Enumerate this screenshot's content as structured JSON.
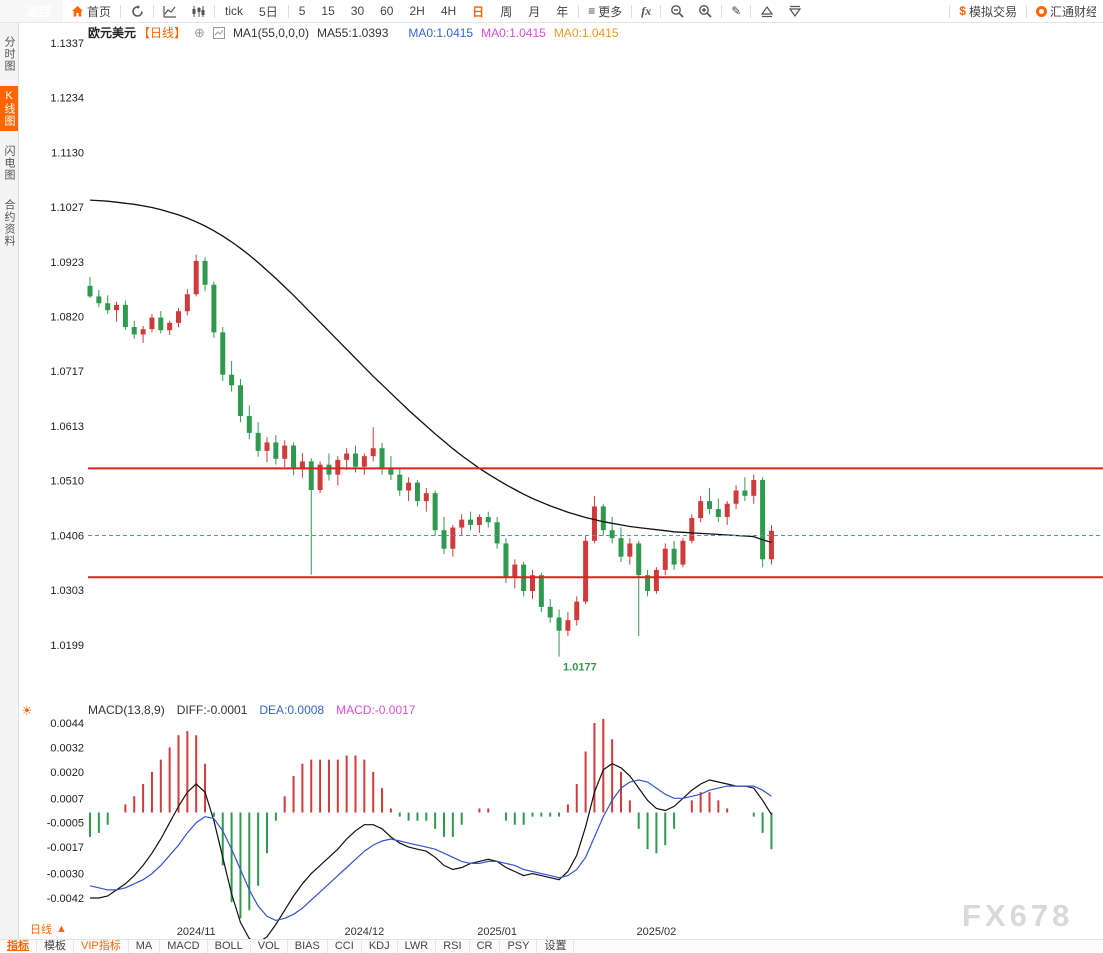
{
  "toolbar": {
    "back": "返回",
    "home": "首页",
    "tick": "tick",
    "five_day": "5日",
    "timeframes": [
      "5",
      "15",
      "30",
      "60",
      "2H",
      "4H",
      "日",
      "周",
      "月",
      "年"
    ],
    "more": "更多",
    "fx": "fx",
    "sim_trading": "模拟交易",
    "brand": "汇通财经"
  },
  "sidebar": {
    "tabs": [
      {
        "label": "分时图"
      },
      {
        "label": "K线图"
      },
      {
        "label": "闪电图"
      },
      {
        "label": "合约资料"
      }
    ]
  },
  "price_header": {
    "symbol": "欧元美元",
    "period": "【日线】",
    "ma_def": "MA1(55,0,0,0)",
    "ma55": "MA55:1.0393",
    "ma0_a": "MA0:1.0415",
    "ma0_b": "MA0:1.0415",
    "ma0_c": "MA0:1.0415"
  },
  "macd_header": {
    "title": "MACD(13,8,9)",
    "diff": "DIFF:-0.0001",
    "dea": "DEA:0.0008",
    "macd": "MACD:-0.0017"
  },
  "bottom": {
    "period": "日线",
    "tabs": [
      "指标",
      "模板",
      "VIP指标",
      "MA",
      "MACD",
      "BOLL",
      "VOL",
      "BIAS",
      "CCI",
      "KDJ",
      "LWR",
      "RSI",
      "CR",
      "PSY",
      "设置"
    ]
  },
  "watermark": "FX678",
  "chart_data": [
    {
      "type": "candlestick",
      "title": "欧元美元 日线 (EUR/USD Daily)",
      "y_ticks": [
        1.1337,
        1.1234,
        1.113,
        1.1027,
        1.0923,
        1.082,
        1.0717,
        1.0613,
        1.051,
        1.0406,
        1.0303,
        1.0199
      ],
      "x_tick_labels": [
        "2024/11",
        "2024/12",
        "2025/01",
        "2025/02"
      ],
      "x_tick_indices": [
        12,
        31,
        46,
        64
      ],
      "levels": {
        "resistance": 1.0533,
        "support": 1.0327,
        "last_price": 1.0406
      },
      "low_label": "1.0177",
      "colors": {
        "up": "#cf3b3b",
        "down": "#2f9a4e",
        "ma": "#111111",
        "level": "#dd2020",
        "dash": "#3a9fc0"
      },
      "candles_ohlc": [
        [
          1.0878,
          1.0895,
          1.0855,
          1.0858
        ],
        [
          1.0858,
          1.087,
          1.0838,
          1.0845
        ],
        [
          1.0845,
          1.086,
          1.0825,
          1.0832
        ],
        [
          1.0832,
          1.0848,
          1.081,
          1.0842
        ],
        [
          1.0842,
          1.085,
          1.0795,
          1.08
        ],
        [
          1.08,
          1.0812,
          1.0778,
          1.0786
        ],
        [
          1.0786,
          1.0802,
          1.077,
          1.0796
        ],
        [
          1.0796,
          1.0825,
          1.079,
          1.0818
        ],
        [
          1.0818,
          1.083,
          1.0788,
          1.0794
        ],
        [
          1.0794,
          1.0812,
          1.0785,
          1.0808
        ],
        [
          1.0808,
          1.0836,
          1.08,
          1.083
        ],
        [
          1.083,
          1.0872,
          1.0822,
          1.0862
        ],
        [
          1.0862,
          1.0937,
          1.0858,
          1.0925
        ],
        [
          1.0925,
          1.0932,
          1.0868,
          1.088
        ],
        [
          1.088,
          1.0886,
          1.078,
          1.079
        ],
        [
          1.079,
          1.08,
          1.0698,
          1.071
        ],
        [
          1.071,
          1.0736,
          1.0678,
          1.069
        ],
        [
          1.069,
          1.0702,
          1.062,
          1.0632
        ],
        [
          1.0632,
          1.0652,
          1.0588,
          1.06
        ],
        [
          1.06,
          1.062,
          1.0555,
          1.0566
        ],
        [
          1.0566,
          1.0592,
          1.0545,
          1.0582
        ],
        [
          1.0582,
          1.0596,
          1.054,
          1.0551
        ],
        [
          1.0551,
          1.0586,
          1.0535,
          1.0576
        ],
        [
          1.0576,
          1.0582,
          1.052,
          1.0531
        ],
        [
          1.0531,
          1.0562,
          1.0515,
          1.0546
        ],
        [
          1.0546,
          1.0552,
          1.0332,
          1.0492
        ],
        [
          1.0492,
          1.0546,
          1.0486,
          1.054
        ],
        [
          1.054,
          1.0561,
          1.051,
          1.0521
        ],
        [
          1.0521,
          1.0556,
          1.0501,
          1.0549
        ],
        [
          1.0549,
          1.0571,
          1.053,
          1.0561
        ],
        [
          1.0561,
          1.0576,
          1.0525,
          1.0536
        ],
        [
          1.0536,
          1.0561,
          1.0521,
          1.0556
        ],
        [
          1.0556,
          1.0611,
          1.0546,
          1.0571
        ],
        [
          1.0571,
          1.0581,
          1.0521,
          1.0531
        ],
        [
          1.0531,
          1.0556,
          1.0511,
          1.0521
        ],
        [
          1.0521,
          1.0531,
          1.0481,
          1.0491
        ],
        [
          1.0491,
          1.0516,
          1.0471,
          1.0506
        ],
        [
          1.0506,
          1.0511,
          1.0461,
          1.0471
        ],
        [
          1.0471,
          1.0496,
          1.0451,
          1.0486
        ],
        [
          1.0486,
          1.0491,
          1.0406,
          1.0416
        ],
        [
          1.0416,
          1.0441,
          1.0371,
          1.0381
        ],
        [
          1.0381,
          1.0426,
          1.0366,
          1.0421
        ],
        [
          1.0421,
          1.0446,
          1.0406,
          1.0436
        ],
        [
          1.0436,
          1.0451,
          1.0416,
          1.0426
        ],
        [
          1.0426,
          1.0446,
          1.0411,
          1.0441
        ],
        [
          1.0441,
          1.0451,
          1.0421,
          1.0431
        ],
        [
          1.0431,
          1.0441,
          1.0381,
          1.0391
        ],
        [
          1.0391,
          1.0401,
          1.0316,
          1.0326
        ],
        [
          1.0326,
          1.0361,
          1.0306,
          1.0351
        ],
        [
          1.0351,
          1.0356,
          1.0291,
          1.0301
        ],
        [
          1.0301,
          1.0341,
          1.0286,
          1.0331
        ],
        [
          1.0331,
          1.0336,
          1.0261,
          1.0271
        ],
        [
          1.0271,
          1.0286,
          1.0241,
          1.0251
        ],
        [
          1.0251,
          1.0266,
          1.0177,
          1.0226
        ],
        [
          1.0226,
          1.0261,
          1.0216,
          1.0246
        ],
        [
          1.0246,
          1.0291,
          1.0236,
          1.0281
        ],
        [
          1.0281,
          1.0406,
          1.0276,
          1.0396
        ],
        [
          1.0396,
          1.0481,
          1.0391,
          1.0461
        ],
        [
          1.0461,
          1.0466,
          1.0406,
          1.0416
        ],
        [
          1.0416,
          1.0441,
          1.0391,
          1.0401
        ],
        [
          1.0401,
          1.0421,
          1.0356,
          1.0366
        ],
        [
          1.0366,
          1.0401,
          1.0351,
          1.0391
        ],
        [
          1.0391,
          1.0396,
          1.0216,
          1.0331
        ],
        [
          1.0331,
          1.0341,
          1.0291,
          1.0301
        ],
        [
          1.0301,
          1.0346,
          1.0296,
          1.0341
        ],
        [
          1.0341,
          1.0391,
          1.0331,
          1.0381
        ],
        [
          1.0381,
          1.0396,
          1.0341,
          1.0351
        ],
        [
          1.0351,
          1.0401,
          1.0346,
          1.0396
        ],
        [
          1.0396,
          1.0446,
          1.0391,
          1.0439
        ],
        [
          1.0439,
          1.0481,
          1.0431,
          1.0471
        ],
        [
          1.0471,
          1.0496,
          1.0446,
          1.0456
        ],
        [
          1.0456,
          1.0476,
          1.0431,
          1.0441
        ],
        [
          1.0441,
          1.0471,
          1.0426,
          1.0466
        ],
        [
          1.0466,
          1.0501,
          1.0456,
          1.0491
        ],
        [
          1.0491,
          1.0516,
          1.0471,
          1.0481
        ],
        [
          1.0481,
          1.0521,
          1.0466,
          1.0511
        ],
        [
          1.0511,
          1.0516,
          1.0346,
          1.0361
        ],
        [
          1.0361,
          1.0426,
          1.0351,
          1.0415
        ]
      ],
      "ma55": [
        1.104,
        1.1039,
        1.1038,
        1.1036,
        1.1034,
        1.1032,
        1.1029,
        1.1026,
        1.1022,
        1.1017,
        1.1012,
        1.1006,
        1.0999,
        1.0991,
        1.0982,
        1.0972,
        1.0961,
        1.0949,
        1.0936,
        1.0922,
        1.0907,
        1.0892,
        1.0876,
        1.086,
        1.0843,
        1.0826,
        1.0809,
        1.0792,
        1.0775,
        1.0758,
        1.0741,
        1.0724,
        1.0707,
        1.0691,
        1.0675,
        1.0659,
        1.0643,
        1.0628,
        1.0613,
        1.0598,
        1.0584,
        1.057,
        1.0557,
        1.0545,
        1.0533,
        1.0522,
        1.0512,
        1.0502,
        1.0493,
        1.0484,
        1.0476,
        1.0469,
        1.0462,
        1.0456,
        1.045,
        1.0445,
        1.044,
        1.0436,
        1.0432,
        1.0429,
        1.0426,
        1.0423,
        1.0421,
        1.0419,
        1.0417,
        1.0415,
        1.0413,
        1.0412,
        1.0411,
        1.041,
        1.0409,
        1.0408,
        1.0407,
        1.0406,
        1.0405,
        1.0404,
        1.0398,
        1.0393
      ]
    },
    {
      "type": "macd",
      "title": "MACD(13,8,9)",
      "y_ticks": [
        0.0044,
        0.0032,
        0.002,
        0.0007,
        -0.0005,
        -0.0017,
        -0.003,
        -0.0042
      ],
      "colors": {
        "diff": "#111111",
        "dea": "#3355cc"
      },
      "diff": [
        -0.0042,
        -0.0042,
        -0.0041,
        -0.0038,
        -0.0035,
        -0.0031,
        -0.0026,
        -0.002,
        -0.0013,
        -0.0005,
        0.0003,
        0.001,
        0.0014,
        0.001,
        -0.0004,
        -0.0022,
        -0.004,
        -0.0054,
        -0.0062,
        -0.0064,
        -0.0061,
        -0.0055,
        -0.0048,
        -0.0041,
        -0.0035,
        -0.003,
        -0.0026,
        -0.0022,
        -0.0018,
        -0.0013,
        -0.0009,
        -0.0006,
        -0.0006,
        -0.0008,
        -0.0012,
        -0.0015,
        -0.0017,
        -0.0018,
        -0.0019,
        -0.0022,
        -0.0026,
        -0.0028,
        -0.0027,
        -0.0025,
        -0.0024,
        -0.0023,
        -0.0024,
        -0.0027,
        -0.0029,
        -0.0031,
        -0.003,
        -0.0031,
        -0.0032,
        -0.0033,
        -0.0029,
        -0.0021,
        -0.0007,
        0.001,
        0.0021,
        0.0024,
        0.0022,
        0.0018,
        0.0012,
        0.0006,
        0.0002,
        0.0001,
        0.0003,
        0.0007,
        0.0011,
        0.0014,
        0.0016,
        0.0015,
        0.0014,
        0.0013,
        0.0013,
        0.0012,
        0.0006,
        -0.0001
      ],
      "dea": [
        -0.0036,
        -0.0037,
        -0.0038,
        -0.0038,
        -0.0037,
        -0.0035,
        -0.0033,
        -0.003,
        -0.0026,
        -0.0021,
        -0.0016,
        -0.001,
        -0.0005,
        -0.0002,
        -0.0003,
        -0.0009,
        -0.0018,
        -0.0028,
        -0.0038,
        -0.0046,
        -0.0051,
        -0.0053,
        -0.0052,
        -0.005,
        -0.0047,
        -0.0043,
        -0.0039,
        -0.0035,
        -0.0031,
        -0.0027,
        -0.0023,
        -0.0019,
        -0.0016,
        -0.0014,
        -0.0013,
        -0.0014,
        -0.0015,
        -0.0016,
        -0.0017,
        -0.0018,
        -0.002,
        -0.0022,
        -0.0024,
        -0.0025,
        -0.0025,
        -0.0024,
        -0.0024,
        -0.0025,
        -0.0026,
        -0.0028,
        -0.0029,
        -0.003,
        -0.0031,
        -0.0032,
        -0.0031,
        -0.0028,
        -0.0022,
        -0.0012,
        -0.0002,
        0.0006,
        0.0012,
        0.0015,
        0.0016,
        0.0015,
        0.0012,
        0.0009,
        0.0007,
        0.0007,
        0.0008,
        0.0009,
        0.0011,
        0.0012,
        0.0013,
        0.0013,
        0.0013,
        0.0013,
        0.0011,
        0.0008
      ]
    }
  ]
}
